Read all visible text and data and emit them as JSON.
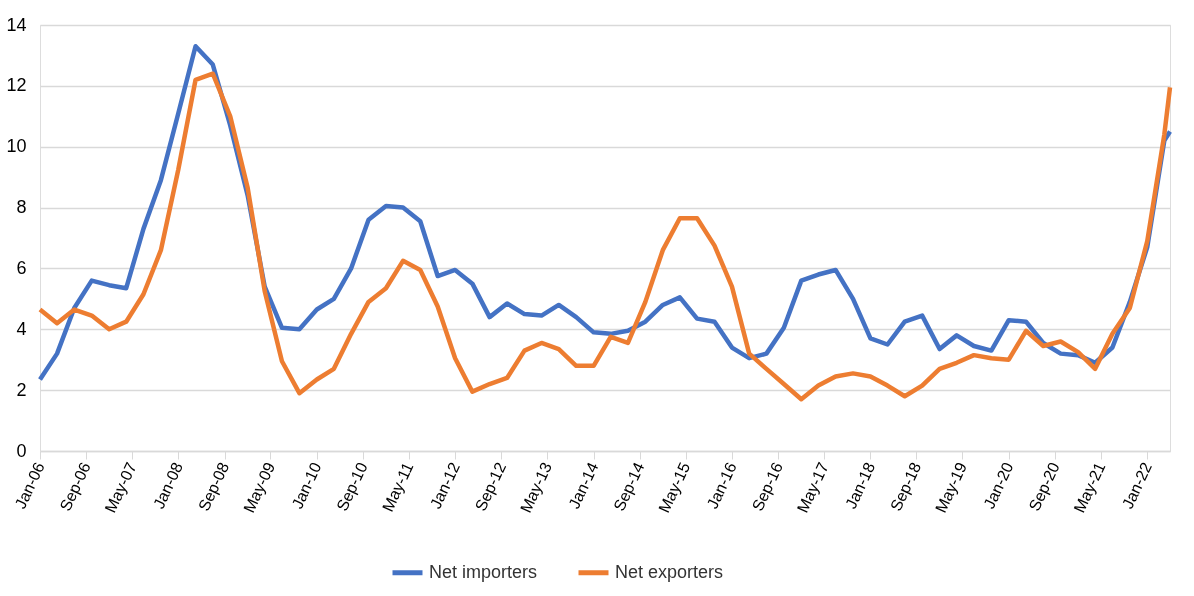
{
  "chart_data": {
    "type": "line",
    "x": [
      "2006-01",
      "2006-04",
      "2006-07",
      "2006-10",
      "2007-01",
      "2007-04",
      "2007-07",
      "2007-10",
      "2008-01",
      "2008-04",
      "2008-07",
      "2008-10",
      "2009-01",
      "2009-04",
      "2009-07",
      "2009-10",
      "2010-01",
      "2010-04",
      "2010-07",
      "2010-10",
      "2011-01",
      "2011-04",
      "2011-07",
      "2011-10",
      "2012-01",
      "2012-04",
      "2012-07",
      "2012-10",
      "2013-01",
      "2013-04",
      "2013-07",
      "2013-10",
      "2014-01",
      "2014-04",
      "2014-07",
      "2014-10",
      "2015-01",
      "2015-04",
      "2015-07",
      "2015-10",
      "2016-01",
      "2016-04",
      "2016-07",
      "2016-10",
      "2017-01",
      "2017-04",
      "2017-07",
      "2017-10",
      "2018-01",
      "2018-04",
      "2018-07",
      "2018-10",
      "2019-01",
      "2019-04",
      "2019-07",
      "2019-10",
      "2020-01",
      "2020-04",
      "2020-07",
      "2020-10",
      "2021-01",
      "2021-04",
      "2021-07",
      "2021-10",
      "2022-01",
      "2022-04",
      "2022-05"
    ],
    "series": [
      {
        "name": "Net importers",
        "color": "#4472c4",
        "values": [
          2.35,
          3.2,
          4.7,
          5.6,
          5.45,
          5.35,
          7.3,
          8.9,
          11.1,
          13.3,
          12.7,
          10.7,
          8.4,
          5.4,
          4.05,
          4.0,
          4.65,
          5.0,
          6.0,
          7.6,
          8.05,
          8.0,
          7.55,
          5.75,
          5.95,
          5.5,
          4.4,
          4.85,
          4.5,
          4.45,
          4.8,
          4.4,
          3.9,
          3.85,
          3.95,
          4.25,
          4.8,
          5.05,
          4.35,
          4.25,
          3.4,
          3.05,
          3.2,
          4.05,
          5.6,
          5.8,
          5.95,
          5.0,
          3.7,
          3.5,
          4.25,
          4.45,
          3.35,
          3.8,
          3.45,
          3.3,
          4.3,
          4.25,
          3.55,
          3.2,
          3.15,
          2.9,
          3.4,
          4.9,
          6.7,
          10.2,
          10.5
        ]
      },
      {
        "name": "Net exporters",
        "color": "#ed7d31",
        "values": [
          4.65,
          4.2,
          4.65,
          4.45,
          4.0,
          4.25,
          5.15,
          6.6,
          9.25,
          12.2,
          12.4,
          11.0,
          8.65,
          5.25,
          2.95,
          1.9,
          2.35,
          2.7,
          3.85,
          4.9,
          5.35,
          6.25,
          5.95,
          4.75,
          3.05,
          1.95,
          2.2,
          2.4,
          3.3,
          3.55,
          3.35,
          2.8,
          2.8,
          3.75,
          3.55,
          4.9,
          6.6,
          7.65,
          7.65,
          6.75,
          5.4,
          3.2,
          2.7,
          2.2,
          1.7,
          2.15,
          2.45,
          2.55,
          2.45,
          2.15,
          1.8,
          2.15,
          2.7,
          2.9,
          3.15,
          3.05,
          3.0,
          3.95,
          3.45,
          3.6,
          3.25,
          2.7,
          3.85,
          4.7,
          6.9,
          10.4,
          11.95
        ]
      }
    ],
    "xlim": [
      "2006-01",
      "2022-05"
    ],
    "xticks": [
      {
        "value": "2006-01",
        "label": "Jan-06"
      },
      {
        "value": "2006-09",
        "label": "Sep-06"
      },
      {
        "value": "2007-05",
        "label": "May-07"
      },
      {
        "value": "2008-01",
        "label": "Jan-08"
      },
      {
        "value": "2008-09",
        "label": "Sep-08"
      },
      {
        "value": "2009-05",
        "label": "May-09"
      },
      {
        "value": "2010-01",
        "label": "Jan-10"
      },
      {
        "value": "2010-09",
        "label": "Sep-10"
      },
      {
        "value": "2011-05",
        "label": "May-11"
      },
      {
        "value": "2012-01",
        "label": "Jan-12"
      },
      {
        "value": "2012-09",
        "label": "Sep-12"
      },
      {
        "value": "2013-05",
        "label": "May-13"
      },
      {
        "value": "2014-01",
        "label": "Jan-14"
      },
      {
        "value": "2014-09",
        "label": "Sep-14"
      },
      {
        "value": "2015-05",
        "label": "May-15"
      },
      {
        "value": "2016-01",
        "label": "Jan-16"
      },
      {
        "value": "2016-09",
        "label": "Sep-16"
      },
      {
        "value": "2017-05",
        "label": "May-17"
      },
      {
        "value": "2018-01",
        "label": "Jan-18"
      },
      {
        "value": "2018-09",
        "label": "Sep-18"
      },
      {
        "value": "2019-05",
        "label": "May-19"
      },
      {
        "value": "2020-01",
        "label": "Jan-20"
      },
      {
        "value": "2020-09",
        "label": "Sep-20"
      },
      {
        "value": "2021-05",
        "label": "May-21"
      },
      {
        "value": "2022-01",
        "label": "Jan-22"
      }
    ],
    "ylim": [
      0,
      14
    ],
    "yticks": [
      0,
      2,
      4,
      6,
      8,
      10,
      12,
      14
    ],
    "grid": "y",
    "legend": "bottom",
    "marker": "none",
    "line_style": "solid"
  }
}
